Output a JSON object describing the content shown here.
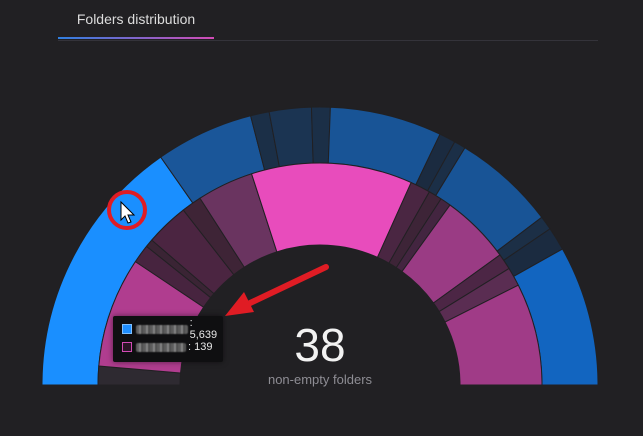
{
  "tabs": [
    {
      "label": "Folders distribution"
    }
  ],
  "center": {
    "value": "38",
    "label": "non-empty folders"
  },
  "tooltip": {
    "rows": [
      {
        "value": ": 5,639",
        "color": "#1f8fff"
      },
      {
        "value": ": 139",
        "color": "#d24bb5"
      }
    ]
  },
  "chart_data": {
    "type": "sunburst",
    "outer_ring": [
      {
        "value": 5639,
        "color": "#1a8fff"
      },
      {
        "value": 2100,
        "color": "#1a5699"
      },
      {
        "value": 400,
        "color": "#1b2f47"
      },
      {
        "value": 900,
        "color": "#1b3452"
      },
      {
        "value": 400,
        "color": "#1b2f47"
      },
      {
        "value": 2400,
        "color": "#185496"
      },
      {
        "value": 350,
        "color": "#1b2b40"
      },
      {
        "value": 250,
        "color": "#1b2f47"
      },
      {
        "value": 2200,
        "color": "#185496"
      },
      {
        "value": 300,
        "color": "#1c2f46"
      },
      {
        "value": 500,
        "color": "#1b2b40"
      },
      {
        "value": 3000,
        "color": "#1265c0"
      }
    ],
    "inner_ring": [
      {
        "value": 140,
        "color": "#2e2a31"
      },
      {
        "value": 820,
        "color": "#b03d8f"
      },
      {
        "value": 139,
        "color": "#47243f"
      },
      {
        "value": 60,
        "color": "#3a2434"
      },
      {
        "value": 320,
        "color": "#4b2541"
      },
      {
        "value": 150,
        "color": "#3e2436"
      },
      {
        "value": 420,
        "color": "#6a3460"
      },
      {
        "value": 1200,
        "color": "#e84cbc"
      },
      {
        "value": 150,
        "color": "#4a2642"
      },
      {
        "value": 100,
        "color": "#3d2437"
      },
      {
        "value": 80,
        "color": "#432540"
      },
      {
        "value": 520,
        "color": "#9a3b84"
      },
      {
        "value": 120,
        "color": "#4c2645"
      },
      {
        "value": 140,
        "color": "#5a2d52"
      },
      {
        "value": 760,
        "color": "#a03b87"
      }
    ]
  }
}
